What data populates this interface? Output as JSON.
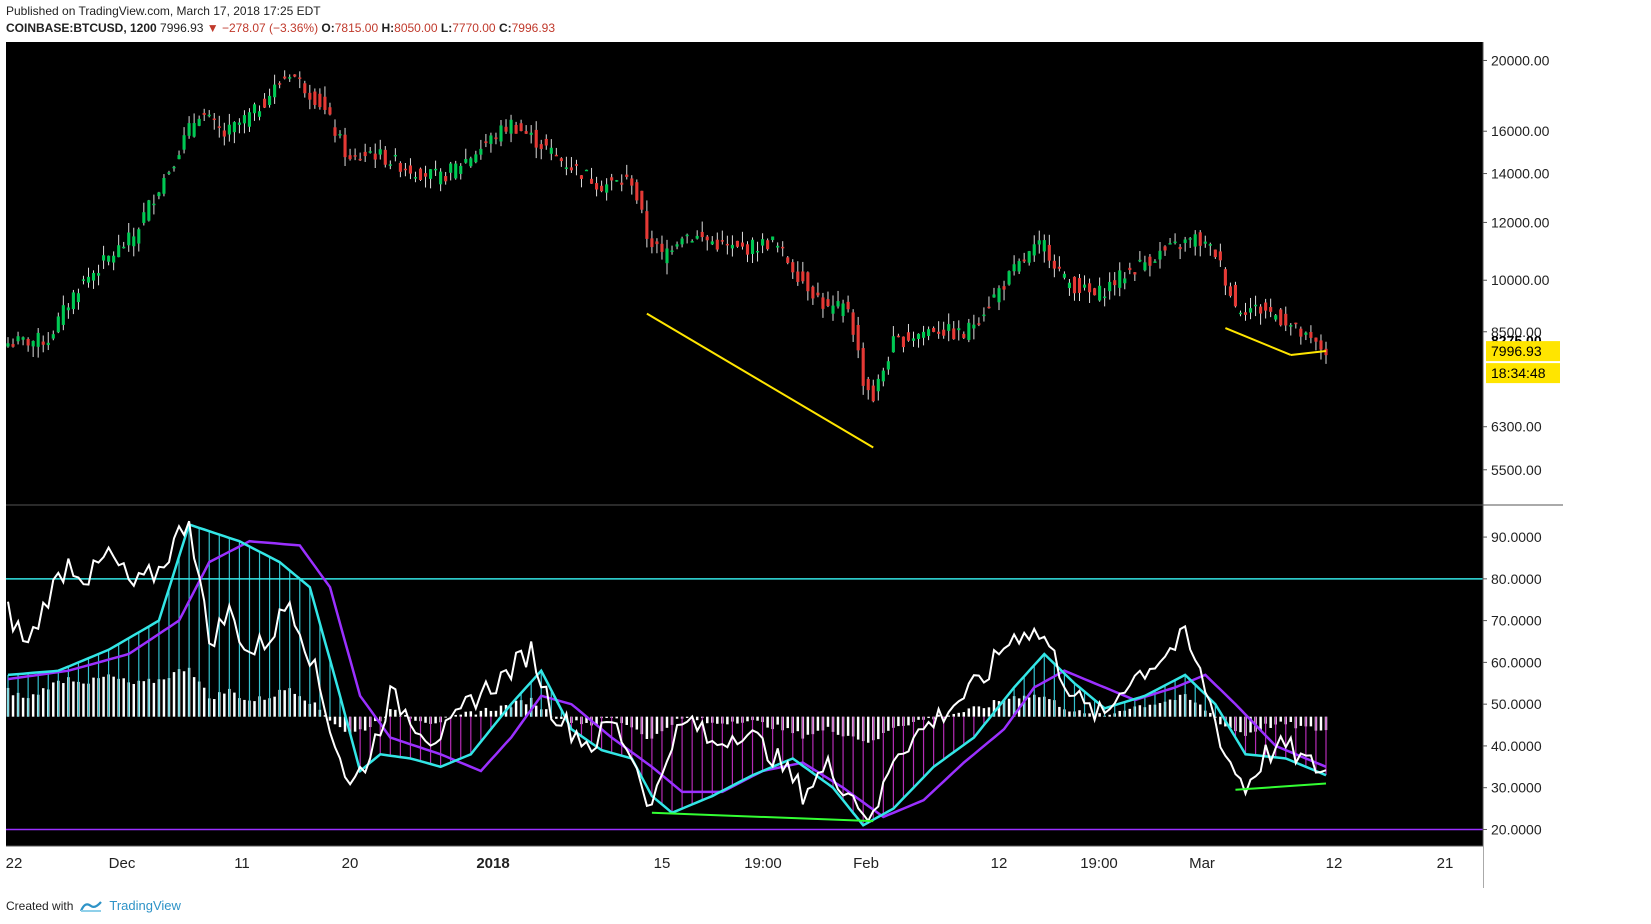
{
  "header": {
    "published": "Published on TradingView.com, March 17, 2018 17:25 EDT",
    "symbol": "COINBASE:BTCUSD, 1200",
    "last": "7996.93",
    "change": "▼ −278.07 (−3.36%)",
    "o_label": "O:",
    "o_value": "7815.00",
    "h_label": "H:",
    "h_value": "8050.00",
    "l_label": "L:",
    "l_value": "7770.00",
    "c_label": "C:",
    "c_value": "7996.93"
  },
  "footer": {
    "created_with": "Created with",
    "brand": "TradingView"
  },
  "colors": {
    "up": "#00c853",
    "down": "#e53935",
    "background": "#000000",
    "trendline_price": "#ffe500",
    "trendline_osc": "#33ff33",
    "fast_line": "#33e6e6",
    "slow_line": "#9b30ff",
    "raw_line": "#ffffff",
    "hist_above": "#33c3d0",
    "hist_below": "#b52bb5",
    "level_high": "#33e6e6",
    "level_low": "#9b30ff"
  },
  "chart_data": [
    {
      "type": "candlestick",
      "scale": "log",
      "y_ticks": [
        "20000.00",
        "16000.00",
        "14000.00",
        "12000.00",
        "10000.00",
        "8500.00",
        "6300.00",
        "5500.00"
      ],
      "y_tick_values": [
        20000,
        16000,
        14000,
        12000,
        10000,
        8500,
        6300,
        5500
      ],
      "ylim": [
        5000,
        21000
      ],
      "price_labels": {
        "prev_close": "8275.00",
        "last": "7996.93",
        "countdown": "18:34:48"
      },
      "x_ticks": [
        "22",
        "Dec",
        "11",
        "20",
        "2018",
        "15",
        "19:00",
        "Feb",
        "12",
        "19:00",
        "Mar",
        "12",
        "21"
      ],
      "anchors": [
        {
          "i": 0,
          "p": 8200
        },
        {
          "i": 8,
          "p": 8300
        },
        {
          "i": 14,
          "p": 9800
        },
        {
          "i": 25,
          "p": 11500
        },
        {
          "i": 32,
          "p": 14200
        },
        {
          "i": 38,
          "p": 17000
        },
        {
          "i": 43,
          "p": 15800
        },
        {
          "i": 49,
          "p": 17000
        },
        {
          "i": 56,
          "p": 19300
        },
        {
          "i": 62,
          "p": 17500
        },
        {
          "i": 68,
          "p": 14500
        },
        {
          "i": 72,
          "p": 15000
        },
        {
          "i": 80,
          "p": 14200
        },
        {
          "i": 86,
          "p": 13800
        },
        {
          "i": 92,
          "p": 14800
        },
        {
          "i": 100,
          "p": 16400
        },
        {
          "i": 104,
          "p": 15700
        },
        {
          "i": 110,
          "p": 14600
        },
        {
          "i": 118,
          "p": 13500
        },
        {
          "i": 124,
          "p": 13700
        },
        {
          "i": 127,
          "p": 11500
        },
        {
          "i": 130,
          "p": 10800
        },
        {
          "i": 134,
          "p": 11600
        },
        {
          "i": 138,
          "p": 11400
        },
        {
          "i": 145,
          "p": 11000
        },
        {
          "i": 152,
          "p": 11300
        },
        {
          "i": 157,
          "p": 10200
        },
        {
          "i": 163,
          "p": 9100
        },
        {
          "i": 167,
          "p": 9200
        },
        {
          "i": 170,
          "p": 7300
        },
        {
          "i": 172,
          "p": 6900
        },
        {
          "i": 176,
          "p": 8200
        },
        {
          "i": 184,
          "p": 8600
        },
        {
          "i": 190,
          "p": 8400
        },
        {
          "i": 196,
          "p": 9500
        },
        {
          "i": 200,
          "p": 10300
        },
        {
          "i": 204,
          "p": 11000
        },
        {
          "i": 206,
          "p": 11200
        },
        {
          "i": 210,
          "p": 10000
        },
        {
          "i": 216,
          "p": 9500
        },
        {
          "i": 222,
          "p": 10200
        },
        {
          "i": 228,
          "p": 10800
        },
        {
          "i": 236,
          "p": 11400
        },
        {
          "i": 240,
          "p": 10900
        },
        {
          "i": 244,
          "p": 9200
        },
        {
          "i": 250,
          "p": 9100
        },
        {
          "i": 254,
          "p": 8800
        },
        {
          "i": 258,
          "p": 8300
        },
        {
          "i": 262,
          "p": 7997
        }
      ],
      "bar_count": 263,
      "trendlines": [
        {
          "from": {
            "i": 127,
            "p": 9000
          },
          "to": {
            "i": 172,
            "p": 5900
          }
        },
        {
          "from": {
            "i": 242,
            "p": 8600
          },
          "to": {
            "i": 255,
            "p": 7900
          }
        },
        {
          "from": {
            "i": 255,
            "p": 7900
          },
          "to": {
            "i": 262,
            "p": 8000
          }
        }
      ]
    },
    {
      "type": "oscillator",
      "y_ticks": [
        "90.0000",
        "80.0000",
        "70.0000",
        "60.0000",
        "50.0000",
        "40.0000",
        "30.0000",
        "20.0000"
      ],
      "y_tick_values": [
        90,
        80,
        70,
        60,
        50,
        40,
        30,
        20
      ],
      "ylim": [
        17,
        96
      ],
      "levels": [
        80,
        20
      ],
      "histogram_baseline": 47,
      "raw_anchors": [
        {
          "i": 0,
          "p": 72
        },
        {
          "i": 4,
          "p": 64
        },
        {
          "i": 8,
          "p": 76
        },
        {
          "i": 12,
          "p": 84
        },
        {
          "i": 16,
          "p": 80
        },
        {
          "i": 20,
          "p": 86
        },
        {
          "i": 25,
          "p": 78
        },
        {
          "i": 30,
          "p": 82
        },
        {
          "i": 36,
          "p": 95
        },
        {
          "i": 40,
          "p": 65
        },
        {
          "i": 44,
          "p": 72
        },
        {
          "i": 48,
          "p": 62
        },
        {
          "i": 52,
          "p": 66
        },
        {
          "i": 56,
          "p": 75
        },
        {
          "i": 60,
          "p": 62
        },
        {
          "i": 64,
          "p": 45
        },
        {
          "i": 68,
          "p": 30
        },
        {
          "i": 72,
          "p": 38
        },
        {
          "i": 76,
          "p": 52
        },
        {
          "i": 80,
          "p": 47
        },
        {
          "i": 84,
          "p": 42
        },
        {
          "i": 88,
          "p": 44
        },
        {
          "i": 92,
          "p": 51
        },
        {
          "i": 98,
          "p": 56
        },
        {
          "i": 104,
          "p": 63
        },
        {
          "i": 108,
          "p": 49
        },
        {
          "i": 112,
          "p": 44
        },
        {
          "i": 116,
          "p": 40
        },
        {
          "i": 120,
          "p": 46
        },
        {
          "i": 124,
          "p": 38
        },
        {
          "i": 128,
          "p": 25
        },
        {
          "i": 132,
          "p": 42
        },
        {
          "i": 136,
          "p": 46
        },
        {
          "i": 140,
          "p": 40
        },
        {
          "i": 146,
          "p": 44
        },
        {
          "i": 152,
          "p": 38
        },
        {
          "i": 158,
          "p": 29
        },
        {
          "i": 163,
          "p": 35
        },
        {
          "i": 168,
          "p": 28
        },
        {
          "i": 172,
          "p": 22
        },
        {
          "i": 176,
          "p": 38
        },
        {
          "i": 182,
          "p": 44
        },
        {
          "i": 188,
          "p": 50
        },
        {
          "i": 194,
          "p": 56
        },
        {
          "i": 198,
          "p": 64
        },
        {
          "i": 202,
          "p": 68
        },
        {
          "i": 206,
          "p": 66
        },
        {
          "i": 210,
          "p": 56
        },
        {
          "i": 214,
          "p": 49
        },
        {
          "i": 218,
          "p": 47
        },
        {
          "i": 222,
          "p": 55
        },
        {
          "i": 228,
          "p": 60
        },
        {
          "i": 234,
          "p": 66
        },
        {
          "i": 238,
          "p": 54
        },
        {
          "i": 242,
          "p": 38
        },
        {
          "i": 246,
          "p": 30
        },
        {
          "i": 250,
          "p": 38
        },
        {
          "i": 254,
          "p": 40
        },
        {
          "i": 258,
          "p": 36
        },
        {
          "i": 262,
          "p": 34
        }
      ],
      "fast_anchors": [
        {
          "i": 0,
          "p": 57
        },
        {
          "i": 10,
          "p": 58
        },
        {
          "i": 20,
          "p": 63
        },
        {
          "i": 30,
          "p": 70
        },
        {
          "i": 36,
          "p": 93
        },
        {
          "i": 46,
          "p": 89
        },
        {
          "i": 54,
          "p": 84
        },
        {
          "i": 60,
          "p": 78
        },
        {
          "i": 66,
          "p": 52
        },
        {
          "i": 70,
          "p": 34
        },
        {
          "i": 74,
          "p": 38
        },
        {
          "i": 80,
          "p": 37
        },
        {
          "i": 86,
          "p": 35
        },
        {
          "i": 92,
          "p": 38
        },
        {
          "i": 100,
          "p": 50
        },
        {
          "i": 106,
          "p": 58
        },
        {
          "i": 112,
          "p": 44
        },
        {
          "i": 118,
          "p": 39
        },
        {
          "i": 124,
          "p": 37
        },
        {
          "i": 128,
          "p": 28
        },
        {
          "i": 132,
          "p": 24
        },
        {
          "i": 140,
          "p": 28
        },
        {
          "i": 148,
          "p": 33
        },
        {
          "i": 156,
          "p": 37
        },
        {
          "i": 164,
          "p": 30
        },
        {
          "i": 170,
          "p": 21
        },
        {
          "i": 176,
          "p": 25
        },
        {
          "i": 184,
          "p": 35
        },
        {
          "i": 192,
          "p": 42
        },
        {
          "i": 200,
          "p": 54
        },
        {
          "i": 206,
          "p": 62
        },
        {
          "i": 212,
          "p": 55
        },
        {
          "i": 218,
          "p": 49
        },
        {
          "i": 226,
          "p": 52
        },
        {
          "i": 234,
          "p": 57
        },
        {
          "i": 240,
          "p": 50
        },
        {
          "i": 246,
          "p": 38
        },
        {
          "i": 254,
          "p": 37
        },
        {
          "i": 262,
          "p": 33
        }
      ],
      "slow_anchors": [
        {
          "i": 0,
          "p": 56
        },
        {
          "i": 12,
          "p": 58
        },
        {
          "i": 24,
          "p": 62
        },
        {
          "i": 34,
          "p": 70
        },
        {
          "i": 40,
          "p": 84
        },
        {
          "i": 48,
          "p": 89
        },
        {
          "i": 58,
          "p": 88
        },
        {
          "i": 64,
          "p": 78
        },
        {
          "i": 70,
          "p": 52
        },
        {
          "i": 76,
          "p": 42
        },
        {
          "i": 86,
          "p": 38
        },
        {
          "i": 94,
          "p": 34
        },
        {
          "i": 100,
          "p": 42
        },
        {
          "i": 106,
          "p": 52
        },
        {
          "i": 112,
          "p": 50
        },
        {
          "i": 120,
          "p": 42
        },
        {
          "i": 128,
          "p": 35
        },
        {
          "i": 134,
          "p": 29
        },
        {
          "i": 142,
          "p": 29
        },
        {
          "i": 150,
          "p": 34
        },
        {
          "i": 158,
          "p": 36
        },
        {
          "i": 166,
          "p": 30
        },
        {
          "i": 174,
          "p": 23
        },
        {
          "i": 182,
          "p": 27
        },
        {
          "i": 190,
          "p": 36
        },
        {
          "i": 198,
          "p": 44
        },
        {
          "i": 204,
          "p": 54
        },
        {
          "i": 210,
          "p": 58
        },
        {
          "i": 216,
          "p": 55
        },
        {
          "i": 224,
          "p": 51
        },
        {
          "i": 232,
          "p": 54
        },
        {
          "i": 238,
          "p": 57
        },
        {
          "i": 244,
          "p": 50
        },
        {
          "i": 252,
          "p": 40
        },
        {
          "i": 262,
          "p": 35
        }
      ],
      "trendlines": [
        {
          "from": {
            "i": 128,
            "p": 24
          },
          "to": {
            "i": 172,
            "p": 22
          }
        },
        {
          "from": {
            "i": 244,
            "p": 29.5
          },
          "to": {
            "i": 262,
            "p": 31
          }
        }
      ]
    }
  ]
}
